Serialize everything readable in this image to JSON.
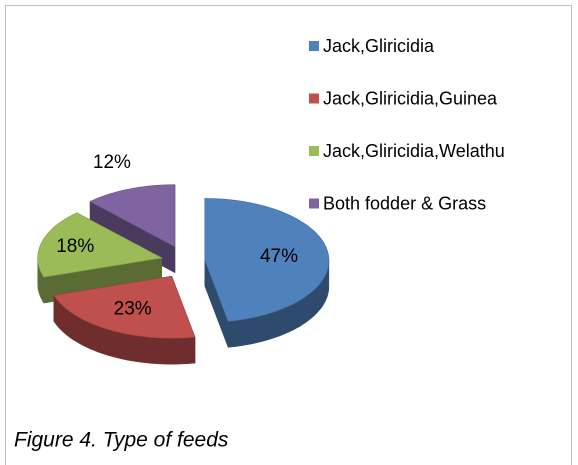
{
  "chart_data": {
    "type": "pie",
    "caption": "Figure 4. Type of feeds",
    "categories": [
      "Jack,Gliricidia",
      "Jack,Gliricidia,Guinea",
      "Jack,Gliricidia,Welathu",
      "Both fodder & Grass"
    ],
    "values": [
      47,
      23,
      18,
      12
    ],
    "value_labels": [
      "47%",
      "23%",
      "18%",
      "12%"
    ],
    "colors": [
      "#4f81bd",
      "#c0504d",
      "#9bbb59",
      "#8064a2"
    ],
    "legend": "right",
    "exploded": true,
    "3d": true
  }
}
